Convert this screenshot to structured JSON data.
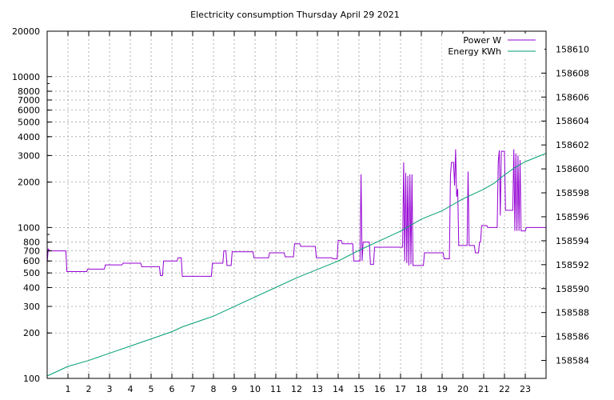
{
  "chart_data": {
    "type": "line",
    "title": "Electricity consumption Thursday April 29 2021",
    "x": {
      "range": [
        0,
        24
      ],
      "ticks": [
        1,
        2,
        3,
        4,
        5,
        6,
        7,
        8,
        9,
        10,
        11,
        12,
        13,
        14,
        15,
        16,
        17,
        18,
        19,
        20,
        21,
        22,
        23
      ],
      "tick_labels": [
        "1",
        "2",
        "3",
        "4",
        "5",
        "6",
        "7",
        "8",
        "9",
        "10",
        "11",
        "12",
        "13",
        "14",
        "15",
        "16",
        "17",
        "18",
        "19",
        "20",
        "21",
        "22",
        "23"
      ],
      "grid": true
    },
    "y_left": {
      "scale": "log",
      "range": [
        100,
        20000
      ],
      "ticks": [
        100,
        200,
        300,
        400,
        500,
        600,
        700,
        800,
        1000,
        2000,
        3000,
        4000,
        5000,
        6000,
        7000,
        8000,
        10000,
        20000
      ],
      "tick_labels": [
        "100",
        "200",
        "300",
        "400",
        "500",
        "600",
        "700",
        "800",
        "1000",
        "2000",
        "3000",
        "4000",
        "5000",
        "6000",
        "7000",
        "8000",
        "10000",
        "20000"
      ],
      "grid": true
    },
    "y_right": {
      "scale": "linear",
      "range": [
        158582.5,
        158611.5
      ],
      "ticks": [
        158584,
        158586,
        158588,
        158590,
        158592,
        158594,
        158596,
        158598,
        158600,
        158602,
        158604,
        158606,
        158608,
        158610
      ],
      "tick_labels": [
        "158584",
        "158586",
        "158588",
        "158590",
        "158592",
        "158594",
        "158596",
        "158598",
        "158600",
        "158602",
        "158604",
        "158606",
        "158608",
        "158610"
      ]
    },
    "legend": {
      "position": "top-right"
    },
    "series": [
      {
        "name": "Power W",
        "axis": "left",
        "color": "#9400d3",
        "step": true,
        "points": [
          [
            0.0,
            580
          ],
          [
            0.05,
            720
          ],
          [
            0.15,
            700
          ],
          [
            0.9,
            700
          ],
          [
            0.95,
            510
          ],
          [
            1.9,
            510
          ],
          [
            1.95,
            530
          ],
          [
            2.75,
            530
          ],
          [
            2.8,
            565
          ],
          [
            3.6,
            565
          ],
          [
            3.65,
            580
          ],
          [
            4.5,
            580
          ],
          [
            4.55,
            550
          ],
          [
            5.4,
            550
          ],
          [
            5.45,
            480
          ],
          [
            5.55,
            480
          ],
          [
            5.6,
            600
          ],
          [
            6.25,
            600
          ],
          [
            6.3,
            630
          ],
          [
            6.45,
            630
          ],
          [
            6.5,
            475
          ],
          [
            7.9,
            475
          ],
          [
            7.95,
            580
          ],
          [
            8.45,
            580
          ],
          [
            8.5,
            700
          ],
          [
            8.6,
            700
          ],
          [
            8.65,
            560
          ],
          [
            8.85,
            560
          ],
          [
            8.9,
            690
          ],
          [
            9.9,
            690
          ],
          [
            9.95,
            630
          ],
          [
            10.65,
            630
          ],
          [
            10.7,
            680
          ],
          [
            11.4,
            680
          ],
          [
            11.45,
            640
          ],
          [
            11.85,
            640
          ],
          [
            11.9,
            780
          ],
          [
            12.15,
            780
          ],
          [
            12.2,
            750
          ],
          [
            12.9,
            750
          ],
          [
            12.95,
            630
          ],
          [
            13.7,
            630
          ],
          [
            13.75,
            620
          ],
          [
            13.95,
            620
          ],
          [
            14.0,
            820
          ],
          [
            14.15,
            820
          ],
          [
            14.2,
            780
          ],
          [
            14.7,
            780
          ],
          [
            14.75,
            600
          ],
          [
            15.05,
            600
          ],
          [
            15.1,
            2250
          ],
          [
            15.15,
            600
          ],
          [
            15.2,
            800
          ],
          [
            15.5,
            800
          ],
          [
            15.55,
            570
          ],
          [
            15.7,
            570
          ],
          [
            15.75,
            740
          ],
          [
            17.1,
            740
          ],
          [
            17.15,
            2700
          ],
          [
            17.2,
            600
          ],
          [
            17.25,
            2300
          ],
          [
            17.3,
            580
          ],
          [
            17.35,
            2200
          ],
          [
            17.4,
            560
          ],
          [
            17.45,
            2250
          ],
          [
            17.5,
            570
          ],
          [
            17.55,
            2250
          ],
          [
            17.6,
            560
          ],
          [
            18.1,
            560
          ],
          [
            18.15,
            680
          ],
          [
            19.05,
            680
          ],
          [
            19.1,
            620
          ],
          [
            19.35,
            620
          ],
          [
            19.4,
            2200
          ],
          [
            19.45,
            2700
          ],
          [
            19.55,
            2700
          ],
          [
            19.6,
            1900
          ],
          [
            19.65,
            3300
          ],
          [
            19.7,
            1600
          ],
          [
            19.75,
            1800
          ],
          [
            19.8,
            760
          ],
          [
            20.2,
            760
          ],
          [
            20.25,
            2350
          ],
          [
            20.3,
            760
          ],
          [
            20.55,
            760
          ],
          [
            20.6,
            680
          ],
          [
            20.75,
            680
          ],
          [
            20.8,
            800
          ],
          [
            20.85,
            800
          ],
          [
            20.9,
            1030
          ],
          [
            21.15,
            1030
          ],
          [
            21.2,
            1000
          ],
          [
            21.65,
            1000
          ],
          [
            21.7,
            2700
          ],
          [
            21.75,
            3250
          ],
          [
            21.8,
            1200
          ],
          [
            21.85,
            3200
          ],
          [
            22.0,
            3200
          ],
          [
            22.05,
            1300
          ],
          [
            22.4,
            1300
          ],
          [
            22.45,
            3300
          ],
          [
            22.5,
            950
          ],
          [
            22.55,
            3100
          ],
          [
            22.6,
            950
          ],
          [
            22.65,
            3000
          ],
          [
            22.7,
            950
          ],
          [
            22.75,
            2800
          ],
          [
            22.8,
            950
          ],
          [
            23.0,
            950
          ],
          [
            23.05,
            1000
          ],
          [
            24.0,
            1000
          ]
        ]
      },
      {
        "name": "Energy KWh",
        "axis": "right",
        "color": "#009e73",
        "points": [
          [
            0.0,
            158582.7
          ],
          [
            1.0,
            158583.5
          ],
          [
            2.0,
            158584.0
          ],
          [
            3.0,
            158584.6
          ],
          [
            4.0,
            158585.2
          ],
          [
            5.0,
            158585.8
          ],
          [
            6.0,
            158586.4
          ],
          [
            6.5,
            158586.8
          ],
          [
            7.0,
            158587.1
          ],
          [
            8.0,
            158587.7
          ],
          [
            8.5,
            158588.1
          ],
          [
            9.0,
            158588.5
          ],
          [
            10.0,
            158589.3
          ],
          [
            11.0,
            158590.1
          ],
          [
            12.0,
            158590.9
          ],
          [
            13.0,
            158591.6
          ],
          [
            14.0,
            158592.3
          ],
          [
            15.0,
            158593.2
          ],
          [
            16.0,
            158594.0
          ],
          [
            17.0,
            158594.8
          ],
          [
            17.6,
            158595.4
          ],
          [
            18.0,
            158595.8
          ],
          [
            19.0,
            158596.5
          ],
          [
            19.5,
            158597.0
          ],
          [
            20.0,
            158597.5
          ],
          [
            21.0,
            158598.3
          ],
          [
            21.5,
            158598.8
          ],
          [
            22.0,
            158599.5
          ],
          [
            22.5,
            158600.1
          ],
          [
            23.0,
            158600.6
          ],
          [
            24.0,
            158601.3
          ]
        ]
      }
    ]
  }
}
